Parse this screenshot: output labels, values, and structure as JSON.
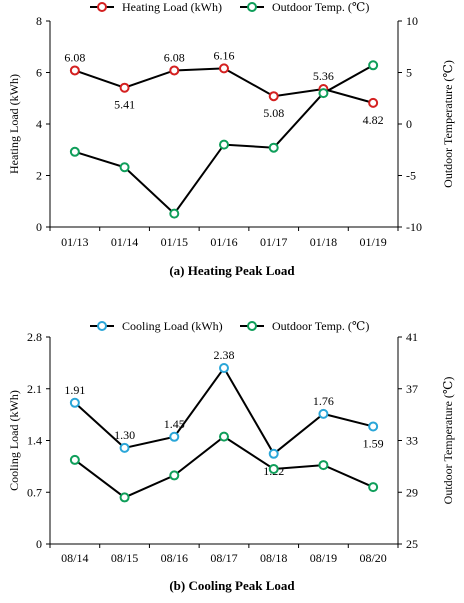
{
  "chart_data": [
    {
      "type": "line",
      "title": "(a) Heating Peak Load",
      "categories": [
        "01/13",
        "01/14",
        "01/15",
        "01/16",
        "01/17",
        "01/18",
        "01/19"
      ],
      "ylabel": "Heating Load (kWh)",
      "y2label": "Outdoor Temperature (℃)",
      "ylim": [
        0,
        8
      ],
      "yticks": [
        "0",
        "2",
        "4",
        "6",
        "8"
      ],
      "y2lim": [
        -10,
        10
      ],
      "y2ticks": [
        "-10",
        "-5",
        "0",
        "5",
        "10"
      ],
      "legend_position": "top",
      "grid": false,
      "series": [
        {
          "name": "Heating Load (kWh)",
          "axis": "left",
          "color": "#d42020",
          "values": [
            6.08,
            5.41,
            6.08,
            6.16,
            5.08,
            5.36,
            4.82
          ],
          "labels": [
            "6.08",
            "5.41",
            "6.08",
            "6.16",
            "5.08",
            "5.36",
            "4.82"
          ]
        },
        {
          "name": "Outdoor Temp. (℃)",
          "axis": "right",
          "color": "#0f9e5a",
          "values": [
            -2.7,
            -4.2,
            -8.7,
            -2.0,
            -2.3,
            3.0,
            5.7
          ]
        }
      ]
    },
    {
      "type": "line",
      "title": "(b) Cooling Peak Load",
      "categories": [
        "08/14",
        "08/15",
        "08/16",
        "08/17",
        "08/18",
        "08/19",
        "08/20"
      ],
      "ylabel": "Cooling Load (kWh)",
      "y2label": "Outdoor Temperature (℃)",
      "ylim": [
        0,
        2.8
      ],
      "yticks": [
        "0",
        "0.7",
        "1.4",
        "2.1",
        "2.8"
      ],
      "y2lim": [
        25,
        41
      ],
      "y2ticks": [
        "25",
        "29",
        "33",
        "37",
        "41"
      ],
      "legend_position": "top",
      "grid": false,
      "series": [
        {
          "name": "Cooling Load (kWh)",
          "axis": "left",
          "color": "#2aa6d8",
          "values": [
            1.91,
            1.3,
            1.45,
            2.38,
            1.22,
            1.76,
            1.59
          ],
          "labels": [
            "1.91",
            "1.30",
            "1.45",
            "2.38",
            "1.22",
            "1.76",
            "1.59"
          ]
        },
        {
          "name": "Outdoor Temp. (℃)",
          "axis": "right",
          "color": "#0f9e5a",
          "values": [
            31.5,
            28.6,
            30.3,
            33.3,
            30.8,
            31.1,
            29.4
          ]
        }
      ]
    }
  ]
}
